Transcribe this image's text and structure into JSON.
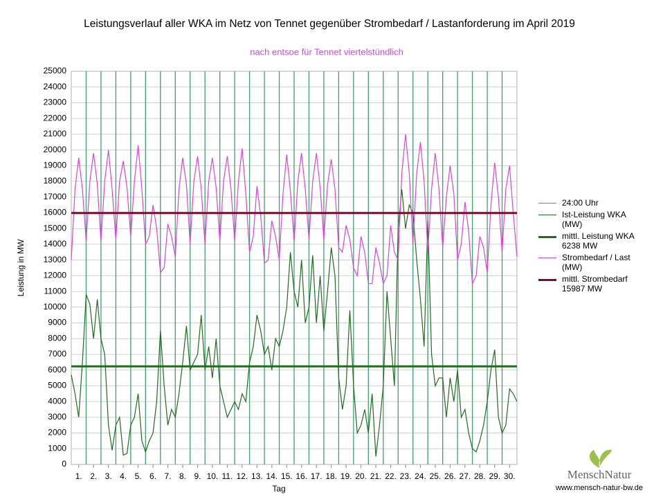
{
  "chart_data": {
    "type": "line",
    "title": "Leistungsverlauf aller WKA im Netz von Tennet gegenüber  Strombedarf / Lastanforderung im April 2019",
    "subtitle": "nach entsoe für Tennet viertelstündlich",
    "y_label": "Leistung in MW",
    "x_label": "Tag",
    "ylim": [
      0,
      25000
    ],
    "yticks": [
      0,
      1000,
      2000,
      3000,
      4000,
      5000,
      6000,
      7000,
      8000,
      9000,
      10000,
      11000,
      12000,
      13000,
      14000,
      15000,
      16000,
      17000,
      18000,
      19000,
      20000,
      21000,
      22000,
      23000,
      24000,
      25000
    ],
    "xlim": [
      0,
      30
    ],
    "xticks": [
      {
        "value": 0.5,
        "label": "1."
      },
      {
        "value": 1.5,
        "label": "2."
      },
      {
        "value": 2.5,
        "label": "3."
      },
      {
        "value": 3.5,
        "label": "4."
      },
      {
        "value": 4.5,
        "label": "5."
      },
      {
        "value": 5.5,
        "label": "6."
      },
      {
        "value": 6.5,
        "label": "7."
      },
      {
        "value": 7.5,
        "label": "8."
      },
      {
        "value": 8.5,
        "label": "9."
      },
      {
        "value": 9.5,
        "label": "10."
      },
      {
        "value": 10.5,
        "label": "11."
      },
      {
        "value": 11.5,
        "label": "12."
      },
      {
        "value": 12.5,
        "label": "13."
      },
      {
        "value": 13.5,
        "label": "14."
      },
      {
        "value": 14.5,
        "label": "15."
      },
      {
        "value": 15.5,
        "label": "16."
      },
      {
        "value": 16.5,
        "label": "17."
      },
      {
        "value": 17.5,
        "label": "18."
      },
      {
        "value": 18.5,
        "label": "19."
      },
      {
        "value": 19.5,
        "label": "20."
      },
      {
        "value": 20.5,
        "label": "21."
      },
      {
        "value": 21.5,
        "label": "22."
      },
      {
        "value": 22.5,
        "label": "23."
      },
      {
        "value": 23.5,
        "label": "24."
      },
      {
        "value": 24.5,
        "label": "25."
      },
      {
        "value": 25.5,
        "label": "26."
      },
      {
        "value": 26.5,
        "label": "27."
      },
      {
        "value": 27.5,
        "label": "28."
      },
      {
        "value": 28.5,
        "label": "29."
      },
      {
        "value": 29.5,
        "label": "30."
      }
    ],
    "grid": true,
    "x": [
      0,
      0.25,
      0.5,
      0.75,
      1,
      1.25,
      1.5,
      1.75,
      2,
      2.25,
      2.5,
      2.75,
      3,
      3.25,
      3.5,
      3.75,
      4,
      4.25,
      4.5,
      4.75,
      5,
      5.25,
      5.5,
      5.75,
      6,
      6.25,
      6.5,
      6.75,
      7,
      7.25,
      7.5,
      7.75,
      8,
      8.25,
      8.5,
      8.75,
      9,
      9.25,
      9.5,
      9.75,
      10,
      10.25,
      10.5,
      10.75,
      11,
      11.25,
      11.5,
      11.75,
      12,
      12.25,
      12.5,
      12.75,
      13,
      13.25,
      13.5,
      13.75,
      14,
      14.25,
      14.5,
      14.75,
      15,
      15.25,
      15.5,
      15.75,
      16,
      16.25,
      16.5,
      16.75,
      17,
      17.25,
      17.5,
      17.75,
      18,
      18.25,
      18.5,
      18.75,
      19,
      19.25,
      19.5,
      19.75,
      20,
      20.25,
      20.5,
      20.75,
      21,
      21.25,
      21.5,
      21.75,
      22,
      22.25,
      22.5,
      22.75,
      23,
      23.25,
      23.5,
      23.75,
      24,
      24.25,
      24.5,
      24.75,
      25,
      25.25,
      25.5,
      25.75,
      26,
      26.25,
      26.5,
      26.75,
      27,
      27.25,
      27.5,
      27.75,
      28,
      28.25,
      28.5,
      28.75,
      29,
      29.25,
      29.5,
      29.75,
      30
    ],
    "series": [
      {
        "name": "24:00 Uhr",
        "type": "vline",
        "color": "#3f9f6f",
        "positions": [
          1,
          2,
          3,
          4,
          5,
          6,
          7,
          8,
          9,
          10,
          11,
          12,
          13,
          14,
          15,
          16,
          17,
          18,
          19,
          20,
          21,
          22,
          23,
          24,
          25,
          26,
          27,
          28,
          29
        ]
      },
      {
        "name": "Ist-Leistung WKA (MW)",
        "type": "line",
        "color": "#1f6b1f",
        "values": [
          5700,
          4500,
          3000,
          6500,
          10800,
          10200,
          8000,
          10500,
          8000,
          7000,
          2500,
          900,
          2500,
          3000,
          600,
          700,
          2500,
          3000,
          4500,
          1500,
          800,
          1500,
          2000,
          4000,
          8500,
          5000,
          2500,
          3500,
          3000,
          4500,
          6500,
          8800,
          6000,
          6500,
          7000,
          9500,
          6000,
          7500,
          5500,
          8000,
          5000,
          4000,
          3000,
          3500,
          4000,
          3500,
          4500,
          4000,
          6500,
          7500,
          9500,
          8500,
          7000,
          7500,
          6000,
          8000,
          7500,
          8500,
          10000,
          13500,
          11000,
          10000,
          13000,
          9000,
          10000,
          13300,
          9000,
          12000,
          8500,
          11000,
          13800,
          12000,
          5500,
          3500,
          5000,
          9800,
          5000,
          2000,
          2500,
          3500,
          2000,
          4500,
          500,
          2500,
          5000,
          11000,
          8000,
          5000,
          15000,
          17500,
          15000,
          16500,
          16000,
          13000,
          10500,
          7500,
          15500,
          7000,
          5000,
          5500,
          5500,
          3000,
          5500,
          4000,
          6000,
          3000,
          3500,
          2000,
          1000,
          800,
          1500,
          2500,
          4000,
          6000,
          7300,
          3000,
          2000,
          2500,
          4800,
          4500,
          4000
        ]
      },
      {
        "name": "mittl. Leistung WKA 6238 MW",
        "type": "hline",
        "color": "#1e6e1e",
        "value": 6238
      },
      {
        "name": "Strombedarf / Last (MW)",
        "type": "line",
        "color": "#e040e0",
        "values": [
          13000,
          17500,
          19500,
          17500,
          14200,
          18000,
          19800,
          17800,
          14200,
          18000,
          20000,
          17500,
          14300,
          18000,
          19300,
          17600,
          14500,
          18000,
          20300,
          17500,
          14000,
          14500,
          16500,
          15000,
          12200,
          12500,
          15300,
          14500,
          13200,
          17500,
          19500,
          17800,
          14000,
          18000,
          19600,
          17500,
          14000,
          18000,
          19500,
          17600,
          14200,
          18000,
          19600,
          17500,
          14200,
          18000,
          20100,
          17200,
          13500,
          14500,
          17700,
          15800,
          12800,
          13000,
          15500,
          14500,
          13000,
          17200,
          19700,
          17400,
          14200,
          18000,
          19800,
          17500,
          14300,
          18000,
          19800,
          17600,
          14300,
          17800,
          19400,
          17500,
          13800,
          13500,
          15200,
          14300,
          12500,
          12000,
          14500,
          13500,
          11500,
          11500,
          13800,
          12800,
          11500,
          12000,
          15200,
          13500,
          13000,
          18500,
          21000,
          18500,
          14000,
          18500,
          20500,
          18000,
          13500,
          17500,
          19800,
          17500,
          13800,
          17000,
          19000,
          17200,
          13000,
          14000,
          16700,
          14800,
          11500,
          12000,
          14500,
          13800,
          12200,
          16500,
          19200,
          17000,
          13500,
          17500,
          19000,
          16000,
          13200
        ]
      },
      {
        "name": "mittl. Strombedarf 15987 MW",
        "type": "hline",
        "color": "#7a0a2a",
        "value": 15987
      }
    ],
    "footer": {
      "logo": "MenschNatur",
      "url": "www.mensch-natur-bw.de"
    }
  }
}
